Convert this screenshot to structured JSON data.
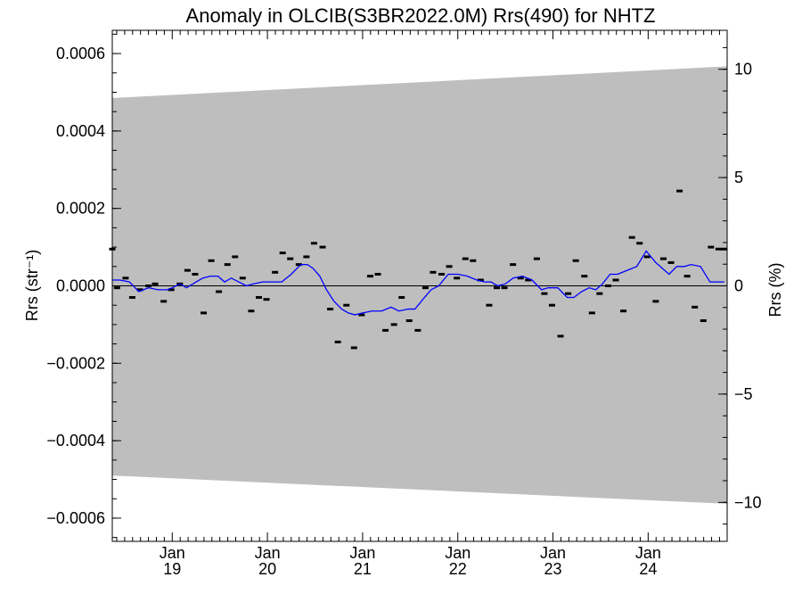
{
  "chart_data": {
    "type": "scatter",
    "title": "Anomaly in OLCIB(S3BR2022.0M) Rrs(490) for NHTZ",
    "ylabel": "Rrs (str⁻¹)",
    "ylabel_right": "Rrs (%)",
    "ylim": [
      -0.00066,
      0.00066
    ],
    "ylim_right": [
      -11.8,
      11.8
    ],
    "xlim": [
      2018.37,
      2024.83
    ],
    "left_ticks": [
      {
        "value": 0.0006,
        "label": "0.0006"
      },
      {
        "value": 0.0004,
        "label": "0.0004"
      },
      {
        "value": 0.0002,
        "label": "0.0002"
      },
      {
        "value": 0.0,
        "label": "0.0000"
      },
      {
        "value": -0.0002,
        "label": "−0.0002"
      },
      {
        "value": -0.0004,
        "label": "−0.0004"
      },
      {
        "value": -0.0006,
        "label": "−0.0006"
      }
    ],
    "right_ticks": [
      {
        "value": 10,
        "label": "10"
      },
      {
        "value": 5,
        "label": "5"
      },
      {
        "value": 0,
        "label": "0"
      },
      {
        "value": -5,
        "label": "−5"
      },
      {
        "value": -10,
        "label": "−10"
      }
    ],
    "x_ticks": [
      {
        "value": 2019.0,
        "month": "Jan",
        "year": "19"
      },
      {
        "value": 2020.0,
        "month": "Jan",
        "year": "20"
      },
      {
        "value": 2021.0,
        "month": "Jan",
        "year": "21"
      },
      {
        "value": 2022.0,
        "month": "Jan",
        "year": "22"
      },
      {
        "value": 2023.0,
        "month": "Jan",
        "year": "23"
      },
      {
        "value": 2024.0,
        "month": "Jan",
        "year": "24"
      }
    ],
    "band": {
      "x": [
        2018.37,
        2024.83
      ],
      "upper": [
        0.000485,
        0.000567
      ],
      "lower": [
        -0.00049,
        -0.000563
      ],
      "color": "#bebebe"
    },
    "zero_line": true,
    "colors": {
      "points": "#000000",
      "line": "#0000ff"
    },
    "points": {
      "x": [
        2018.37,
        2018.42,
        2018.51,
        2018.58,
        2018.66,
        2018.75,
        2018.82,
        2018.91,
        2018.99,
        2019.08,
        2019.16,
        2019.24,
        2019.33,
        2019.41,
        2019.49,
        2019.58,
        2019.66,
        2019.74,
        2019.83,
        2019.91,
        2019.99,
        2020.08,
        2020.16,
        2020.24,
        2020.33,
        2020.41,
        2020.49,
        2020.58,
        2020.66,
        2020.74,
        2020.83,
        2020.91,
        2020.99,
        2021.08,
        2021.16,
        2021.24,
        2021.33,
        2021.41,
        2021.49,
        2021.58,
        2021.66,
        2021.74,
        2021.83,
        2021.91,
        2021.99,
        2022.08,
        2022.16,
        2022.24,
        2022.33,
        2022.41,
        2022.49,
        2022.58,
        2022.66,
        2022.74,
        2022.83,
        2022.91,
        2022.99,
        2023.08,
        2023.16,
        2023.24,
        2023.33,
        2023.41,
        2023.49,
        2023.58,
        2023.66,
        2023.74,
        2023.83,
        2023.91,
        2023.99,
        2024.08,
        2024.16,
        2024.24,
        2024.33,
        2024.41,
        2024.49,
        2024.58,
        2024.66,
        2024.74,
        2024.8
      ],
      "y": [
        9.5e-05,
        -5e-06,
        2e-05,
        -3e-05,
        -1e-05,
        0.0,
        5e-06,
        -4e-05,
        -1e-05,
        5e-06,
        4e-05,
        3e-05,
        -7e-05,
        6.5e-05,
        -1.5e-05,
        5.5e-05,
        7.5e-05,
        2e-05,
        -6.5e-05,
        -3e-05,
        -3.5e-05,
        3.5e-05,
        8.5e-05,
        7e-05,
        5.5e-05,
        7.5e-05,
        0.00011,
        0.0001,
        -6e-05,
        -0.000145,
        -5e-05,
        -0.00016,
        -7.5e-05,
        2.5e-05,
        3e-05,
        -0.000115,
        -0.0001,
        -3e-05,
        -9e-05,
        -0.000115,
        -5e-06,
        3.5e-05,
        3e-05,
        5e-05,
        2e-05,
        7e-05,
        6.5e-05,
        1.5e-05,
        -5e-05,
        -5e-06,
        -5e-06,
        5.5e-05,
        2e-05,
        1.5e-05,
        7e-05,
        -2e-05,
        -5e-05,
        -0.00013,
        -2e-05,
        6.5e-05,
        2.5e-05,
        -7e-05,
        -2e-05,
        0.0,
        1.5e-05,
        -6.5e-05,
        0.000125,
        0.00011,
        7.5e-05,
        -4e-05,
        7e-05,
        6e-05,
        0.000245,
        2.5e-05,
        -5.5e-05,
        -9e-05,
        0.0001,
        9.5e-05,
        9.5e-05
      ]
    },
    "smooth_line": {
      "x": [
        2018.37,
        2018.45,
        2018.55,
        2018.65,
        2018.75,
        2018.85,
        2018.95,
        2019.0,
        2019.08,
        2019.15,
        2019.25,
        2019.32,
        2019.4,
        2019.48,
        2019.55,
        2019.62,
        2019.7,
        2019.78,
        2019.85,
        2019.95,
        2020.05,
        2020.15,
        2020.25,
        2020.35,
        2020.42,
        2020.48,
        2020.55,
        2020.62,
        2020.7,
        2020.78,
        2020.85,
        2020.92,
        2021.0,
        2021.1,
        2021.2,
        2021.3,
        2021.38,
        2021.48,
        2021.55,
        2021.65,
        2021.72,
        2021.8,
        2021.9,
        2022.0,
        2022.1,
        2022.2,
        2022.28,
        2022.35,
        2022.42,
        2022.5,
        2022.58,
        2022.68,
        2022.78,
        2022.88,
        2022.95,
        2023.05,
        2023.15,
        2023.22,
        2023.3,
        2023.38,
        2023.45,
        2023.52,
        2023.6,
        2023.68,
        2023.78,
        2023.88,
        2023.98,
        2024.08,
        2024.15,
        2024.22,
        2024.3,
        2024.38,
        2024.45,
        2024.55,
        2024.65,
        2024.72,
        2024.8
      ],
      "y": [
        1.5e-05,
        1.5e-05,
        1e-05,
        -1.5e-05,
        -5e-06,
        -1e-05,
        -1e-05,
        -5e-06,
        5e-06,
        -5e-06,
        1e-05,
        2e-05,
        2.5e-05,
        2.5e-05,
        1e-05,
        2e-05,
        1e-05,
        0.0,
        5e-06,
        1e-05,
        1e-05,
        1e-05,
        3e-05,
        5.5e-05,
        5.5e-05,
        4.5e-05,
        2.5e-05,
        -1e-05,
        -4e-05,
        -6e-05,
        -7e-05,
        -7.5e-05,
        -7e-05,
        -6.5e-05,
        -6.5e-05,
        -5.5e-05,
        -6.5e-05,
        -6e-05,
        -6e-05,
        -3e-05,
        -1e-05,
        0.0,
        3e-05,
        3e-05,
        2.5e-05,
        1.5e-05,
        1e-05,
        1e-05,
        0.0,
        5e-06,
        2e-05,
        2.5e-05,
        1.5e-05,
        -1e-05,
        -5e-06,
        -5e-06,
        -3e-05,
        -3e-05,
        -1.5e-05,
        -5e-06,
        -1e-05,
        5e-06,
        3e-05,
        3e-05,
        4e-05,
        5e-05,
        9e-05,
        6e-05,
        4.5e-05,
        3e-05,
        5e-05,
        5e-05,
        5.5e-05,
        5e-05,
        1e-05,
        1e-05,
        1e-05
      ]
    }
  }
}
